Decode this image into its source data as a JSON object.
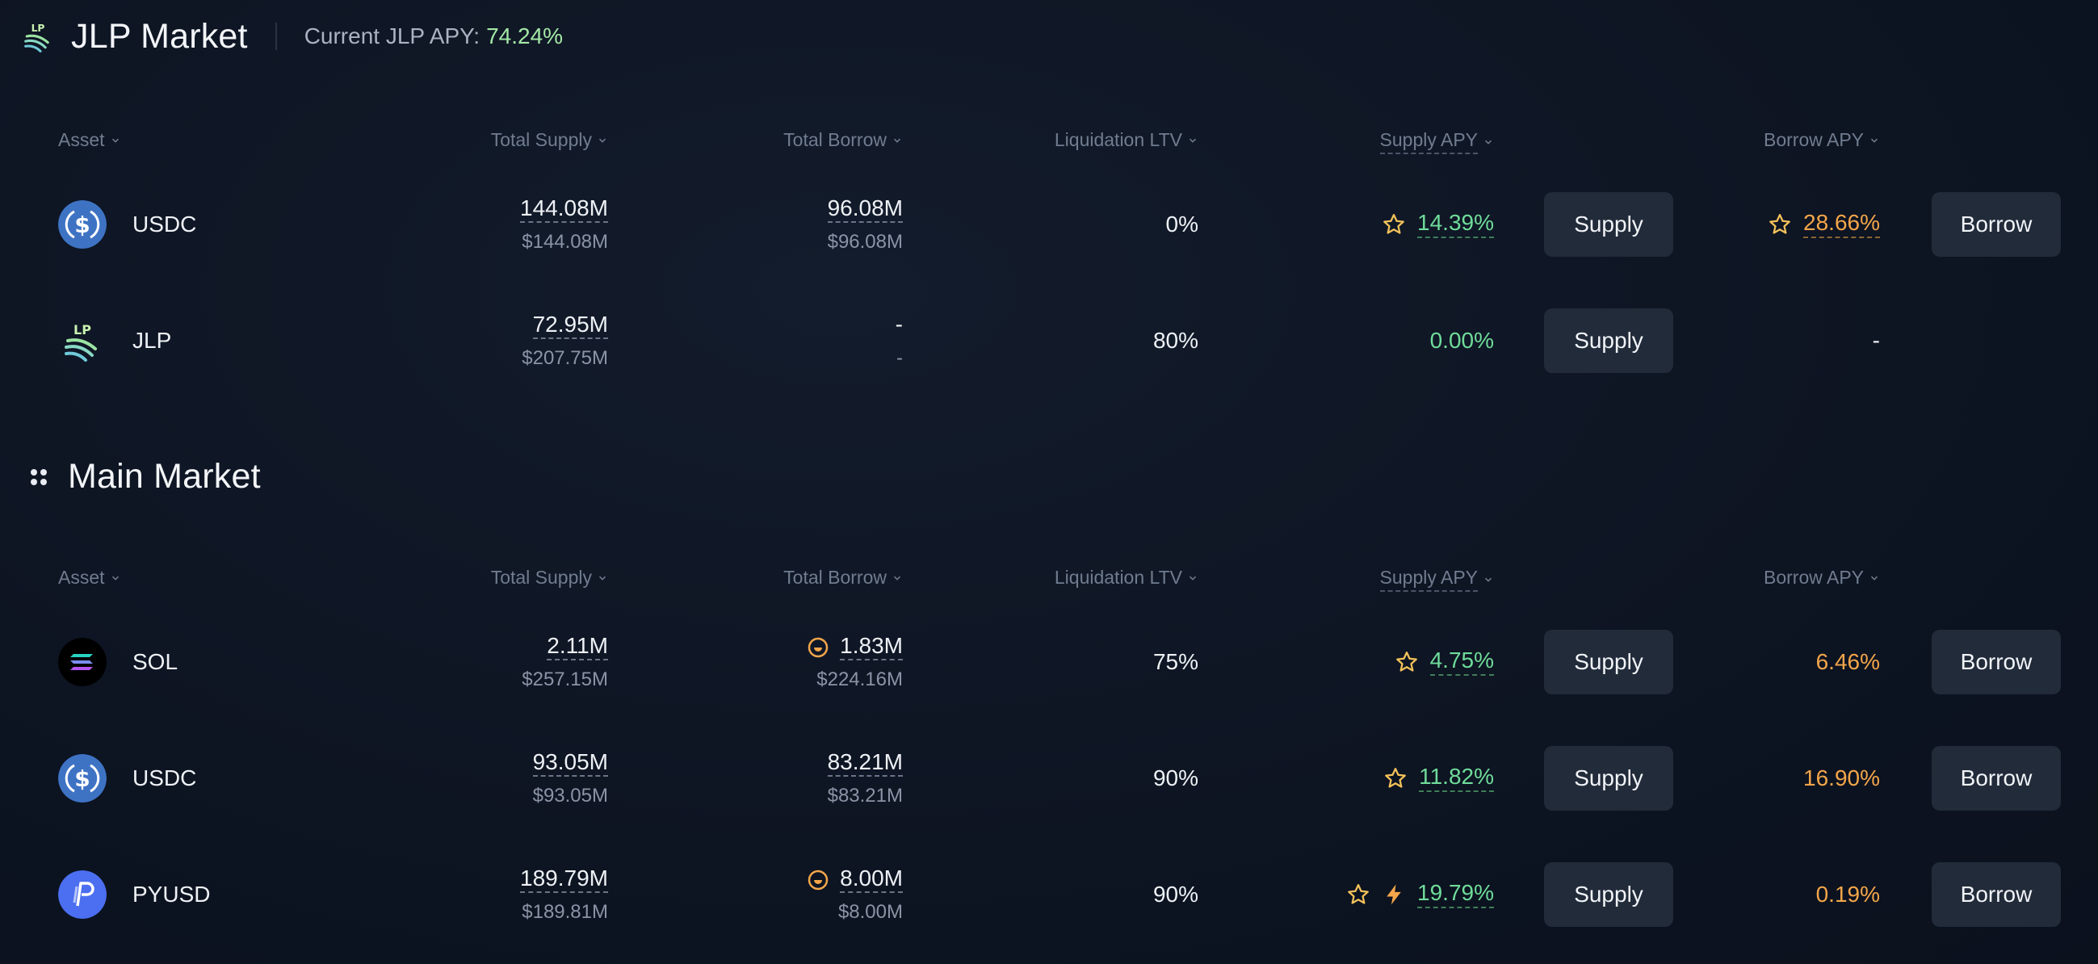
{
  "jlp_market": {
    "title": "JLP Market",
    "apy_label": "Current JLP APY:",
    "apy_value": "74.24%",
    "headers": {
      "asset": "Asset",
      "total_supply": "Total Supply",
      "total_borrow": "Total Borrow",
      "liquidation_ltv": "Liquidation LTV",
      "supply_apy": "Supply APY",
      "borrow_apy": "Borrow APY"
    },
    "rows": [
      {
        "asset": "USDC",
        "supply": "144.08M",
        "supply_usd": "$144.08M",
        "borrow": "96.08M",
        "borrow_usd": "$96.08M",
        "ltv": "0%",
        "supply_apy": "14.39%",
        "borrow_apy": "28.66%",
        "supply_btn": "Supply",
        "borrow_btn": "Borrow"
      },
      {
        "asset": "JLP",
        "supply": "72.95M",
        "supply_usd": "$207.75M",
        "borrow": "-",
        "borrow_usd": "-",
        "ltv": "80%",
        "supply_apy": "0.00%",
        "borrow_apy": "-",
        "supply_btn": "Supply"
      }
    ]
  },
  "main_market": {
    "title": "Main Market",
    "headers": {
      "asset": "Asset",
      "total_supply": "Total Supply",
      "total_borrow": "Total Borrow",
      "liquidation_ltv": "Liquidation LTV",
      "supply_apy": "Supply APY",
      "borrow_apy": "Borrow APY"
    },
    "rows": [
      {
        "asset": "SOL",
        "supply": "2.11M",
        "supply_usd": "$257.15M",
        "borrow": "1.83M",
        "borrow_usd": "$224.16M",
        "ltv": "75%",
        "supply_apy": "4.75%",
        "borrow_apy": "6.46%",
        "supply_btn": "Supply",
        "borrow_btn": "Borrow"
      },
      {
        "asset": "USDC",
        "supply": "93.05M",
        "supply_usd": "$93.05M",
        "borrow": "83.21M",
        "borrow_usd": "$83.21M",
        "ltv": "90%",
        "supply_apy": "11.82%",
        "borrow_apy": "16.90%",
        "supply_btn": "Supply",
        "borrow_btn": "Borrow"
      },
      {
        "asset": "PYUSD",
        "supply": "189.79M",
        "supply_usd": "$189.81M",
        "borrow": "8.00M",
        "borrow_usd": "$8.00M",
        "ltv": "90%",
        "supply_apy": "19.79%",
        "borrow_apy": "0.19%",
        "supply_btn": "Supply",
        "borrow_btn": "Borrow"
      }
    ]
  },
  "icons": {
    "jlp_logo": "jlp-logo-icon",
    "main_market": "grid-dots-icon",
    "sort": "chevron-down-icon",
    "reward": "star-icon",
    "boost": "lightning-icon",
    "coin": "coin-badge-icon"
  },
  "colors": {
    "supply_apy": "#6fdc9a",
    "borrow_apy": "#f3a64a",
    "jlp_apy": "#a4e8a6",
    "button_bg": "#222b3a"
  }
}
